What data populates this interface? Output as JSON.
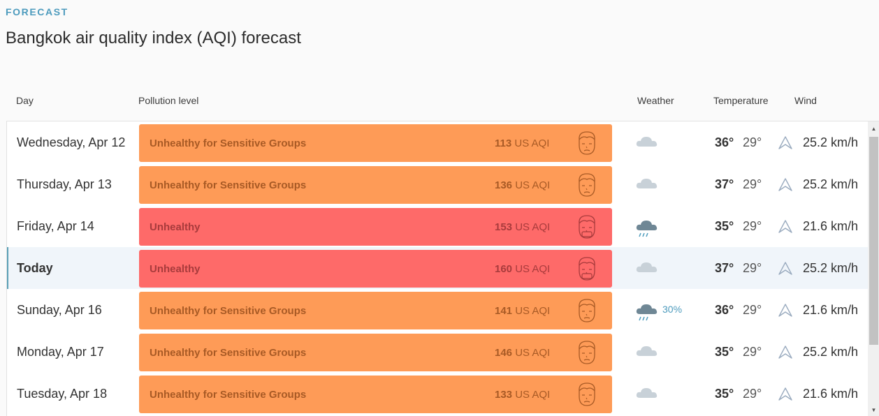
{
  "header": {
    "eyebrow": "FORECAST",
    "title": "Bangkok air quality index (AQI) forecast"
  },
  "columns": {
    "day": "Day",
    "pollution": "Pollution level",
    "weather": "Weather",
    "temperature": "Temperature",
    "wind": "Wind"
  },
  "aqi_unit": "US AQI",
  "colors": {
    "usg": "#fe9b57",
    "unhealthy": "#fe6a69",
    "accent": "#4d9bbd"
  },
  "rows": [
    {
      "day": "Wednesday, Apr 12",
      "level": "Unhealthy for Sensitive Groups",
      "category": "usg",
      "aqi": "113",
      "weather_icon": "cloud-icon",
      "precip": "",
      "tmax": "36°",
      "tmin": "29°",
      "wind": "25.2 km/h",
      "wind_icon": "wind-direction-arrow-icon"
    },
    {
      "day": "Thursday, Apr 13",
      "level": "Unhealthy for Sensitive Groups",
      "category": "usg",
      "aqi": "136",
      "weather_icon": "cloud-icon",
      "precip": "",
      "tmax": "37°",
      "tmin": "29°",
      "wind": "25.2 km/h",
      "wind_icon": "wind-direction-arrow-icon"
    },
    {
      "day": "Friday, Apr 14",
      "level": "Unhealthy",
      "category": "unhealthy",
      "aqi": "153",
      "weather_icon": "rain-cloud-icon",
      "precip": "",
      "tmax": "35°",
      "tmin": "29°",
      "wind": "21.6 km/h",
      "wind_icon": "wind-direction-arrow-icon"
    },
    {
      "day": "Today",
      "level": "Unhealthy",
      "category": "unhealthy",
      "aqi": "160",
      "weather_icon": "cloud-icon",
      "precip": "",
      "tmax": "37°",
      "tmin": "29°",
      "wind": "25.2 km/h",
      "wind_icon": "wind-direction-arrow-icon",
      "today": true
    },
    {
      "day": "Sunday, Apr 16",
      "level": "Unhealthy for Sensitive Groups",
      "category": "usg",
      "aqi": "141",
      "weather_icon": "rain-cloud-icon",
      "precip": "30%",
      "tmax": "36°",
      "tmin": "29°",
      "wind": "21.6 km/h",
      "wind_icon": "wind-direction-arrow-icon"
    },
    {
      "day": "Monday, Apr 17",
      "level": "Unhealthy for Sensitive Groups",
      "category": "usg",
      "aqi": "146",
      "weather_icon": "cloud-icon",
      "precip": "",
      "tmax": "35°",
      "tmin": "29°",
      "wind": "25.2 km/h",
      "wind_icon": "wind-direction-arrow-icon"
    },
    {
      "day": "Tuesday, Apr 18",
      "level": "Unhealthy for Sensitive Groups",
      "category": "usg",
      "aqi": "133",
      "weather_icon": "cloud-icon",
      "precip": "",
      "tmax": "35°",
      "tmin": "29°",
      "wind": "21.6 km/h",
      "wind_icon": "wind-direction-arrow-icon"
    }
  ]
}
